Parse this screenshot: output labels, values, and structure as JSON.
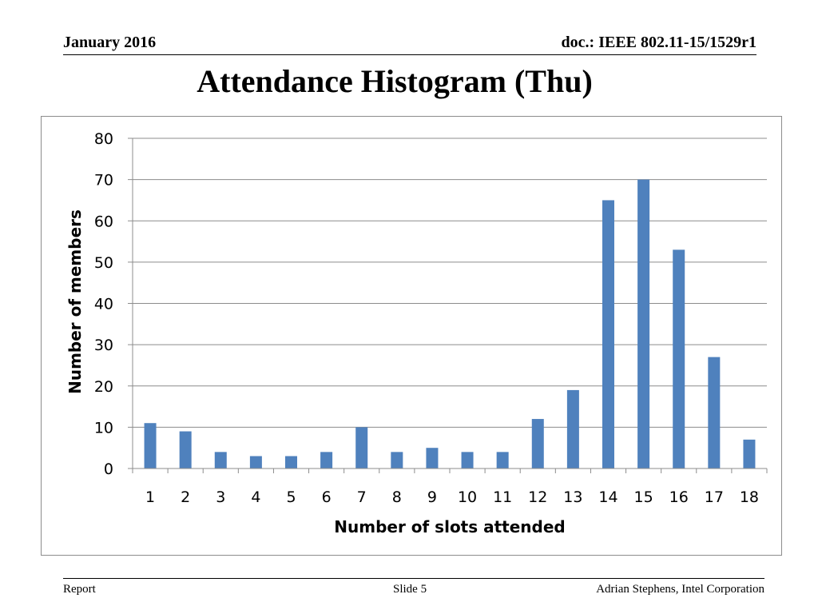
{
  "header": {
    "date": "January 2016",
    "doc": "doc.: IEEE 802.11-15/1529r1"
  },
  "slide_title": "Attendance Histogram (Thu)",
  "chart_data": {
    "type": "bar",
    "title": "",
    "xlabel": "Number of slots attended",
    "ylabel": "Number of members",
    "categories": [
      "1",
      "2",
      "3",
      "4",
      "5",
      "6",
      "7",
      "8",
      "9",
      "10",
      "11",
      "12",
      "13",
      "14",
      "15",
      "16",
      "17",
      "18"
    ],
    "values": [
      11,
      9,
      4,
      3,
      3,
      4,
      10,
      4,
      5,
      4,
      4,
      12,
      19,
      65,
      70,
      53,
      27,
      7
    ],
    "ylim": [
      0,
      80
    ],
    "yticks": [
      "0",
      "10",
      "20",
      "30",
      "40",
      "50",
      "60",
      "70",
      "80"
    ],
    "grid": true,
    "legend": "none",
    "bar_color": "#4f81bd"
  },
  "footer": {
    "left": "Report",
    "center": "Slide 5",
    "right": "Adrian Stephens, Intel Corporation"
  }
}
